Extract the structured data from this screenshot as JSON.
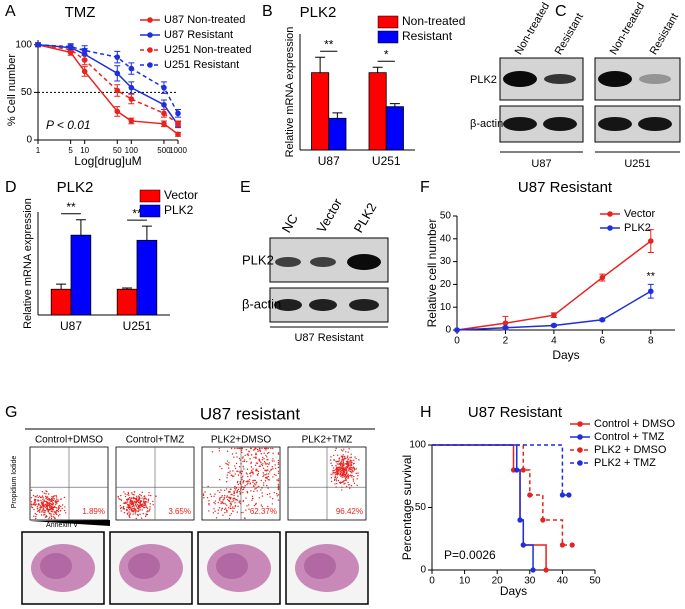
{
  "panel_labels": [
    "A",
    "B",
    "C",
    "D",
    "E",
    "F",
    "G",
    "H"
  ],
  "chart_data": [
    {
      "type": "line",
      "title": "TMZ",
      "xlabel": "Log[drug]uM",
      "ylabel": "% Cell number",
      "xscale": "log",
      "x": [
        1,
        5,
        10,
        50,
        100,
        500,
        1000
      ],
      "xlim": [
        1,
        1000
      ],
      "xticks": [
        1,
        5,
        10,
        50,
        100,
        500,
        1000
      ],
      "ylim": [
        0,
        105
      ],
      "yticks": [
        0,
        50,
        100
      ],
      "reference_line": 50,
      "annotation": "P < 0.01",
      "series": [
        {
          "name": "U87 Non-treated",
          "color": "#e8231f",
          "dash": false,
          "values": [
            100,
            92,
            72,
            30,
            20,
            17,
            6
          ],
          "errors": [
            2,
            3,
            5,
            5,
            3,
            3,
            2
          ]
        },
        {
          "name": "U87 Resistant",
          "color": "#1d2fe0",
          "dash": false,
          "values": [
            100,
            97,
            90,
            70,
            55,
            37,
            16
          ],
          "errors": [
            2,
            3,
            6,
            8,
            6,
            5,
            3
          ]
        },
        {
          "name": "U251 Non-treated",
          "color": "#e8231f",
          "dash": true,
          "values": [
            100,
            95,
            84,
            52,
            43,
            28,
            17
          ],
          "errors": [
            2,
            3,
            5,
            6,
            5,
            4,
            3
          ]
        },
        {
          "name": "U251 Resistant",
          "color": "#1d2fe0",
          "dash": true,
          "values": [
            100,
            98,
            94,
            87,
            75,
            55,
            28
          ],
          "errors": [
            2,
            3,
            5,
            6,
            6,
            6,
            4
          ]
        }
      ]
    },
    {
      "type": "bar",
      "title": "PLK2",
      "ylabel": "Relative mRNA expression",
      "categories": [
        "U87",
        "U251"
      ],
      "ylim": [
        0,
        1.5
      ],
      "significance": [
        "**",
        "*"
      ],
      "series": [
        {
          "name": "Non-treated",
          "color": "#ff0000",
          "values": [
            1.0,
            1.0
          ],
          "errors": [
            0.2,
            0.07
          ]
        },
        {
          "name": "Resistant",
          "color": "#0000ff",
          "values": [
            0.41,
            0.56
          ],
          "errors": [
            0.07,
            0.04
          ]
        }
      ]
    },
    {
      "type": "bar",
      "title": "PLK2",
      "ylabel": "Relative mRNA expression",
      "categories": [
        "U87",
        "U251"
      ],
      "ylim": [
        0,
        4
      ],
      "significance": [
        "**",
        "**"
      ],
      "series": [
        {
          "name": "Vector",
          "color": "#ff0000",
          "values": [
            1.0,
            1.0
          ],
          "errors": [
            0.2,
            0.05
          ]
        },
        {
          "name": "PLK2",
          "color": "#0000ff",
          "values": [
            3.1,
            2.9
          ],
          "errors": [
            0.6,
            0.55
          ]
        }
      ]
    },
    {
      "type": "line",
      "title": "U87 Resistant",
      "xlabel": "Days",
      "ylabel": "Relative cell number",
      "x": [
        0,
        2,
        4,
        6,
        8
      ],
      "xlim": [
        0,
        9
      ],
      "xticks": [
        0,
        2,
        4,
        6,
        8
      ],
      "ylim": [
        0,
        50
      ],
      "yticks": [
        0,
        10,
        20,
        30,
        40,
        50
      ],
      "annotation": "**",
      "series": [
        {
          "name": "Vector",
          "color": "#e8231f",
          "dash": false,
          "values": [
            0,
            3,
            6.5,
            23,
            39
          ],
          "errors": [
            0,
            3,
            1,
            1.5,
            5
          ]
        },
        {
          "name": "PLK2",
          "color": "#1d2fe0",
          "dash": false,
          "values": [
            0,
            1,
            2,
            4.5,
            17
          ],
          "errors": [
            0,
            0.5,
            0.5,
            0.5,
            3
          ]
        }
      ]
    },
    {
      "type": "step",
      "title": "U87 Resistant",
      "xlabel": "Days",
      "ylabel": "Percentage survival",
      "xlim": [
        0,
        50
      ],
      "xticks": [
        0,
        10,
        20,
        30,
        40,
        50
      ],
      "ylim": [
        0,
        100
      ],
      "yticks": [
        0,
        50,
        100
      ],
      "annotation": "P=0.0026",
      "series": [
        {
          "name": "Control + DMSO",
          "color": "#e8231f",
          "dash": false,
          "x": [
            0,
            25,
            27,
            28,
            35
          ],
          "values": [
            100,
            80,
            40,
            20,
            0
          ]
        },
        {
          "name": "Control + TMZ",
          "color": "#1d2fe0",
          "dash": false,
          "x": [
            0,
            26,
            27,
            28,
            31
          ],
          "values": [
            100,
            80,
            40,
            20,
            0
          ]
        },
        {
          "name": "PLK2 + DMSO",
          "color": "#e8231f",
          "dash": true,
          "x": [
            0,
            28,
            30,
            34,
            40,
            43
          ],
          "values": [
            100,
            80,
            60,
            40,
            20,
            20
          ]
        },
        {
          "name": "PLK2 + TMZ",
          "color": "#1d2fe0",
          "dash": true,
          "x": [
            0,
            40,
            42
          ],
          "values": [
            100,
            60,
            60
          ]
        }
      ]
    }
  ],
  "blot_c": {
    "columns": [
      "Non-treated",
      "Resistant",
      "Non-treated",
      "Resistant"
    ],
    "rows": [
      "PLK2",
      "β-actin"
    ],
    "groups": [
      "U87",
      "U251"
    ]
  },
  "blot_e": {
    "columns": [
      "NC",
      "Vector",
      "PLK2"
    ],
    "rows": [
      "PLK2",
      "β-actin"
    ],
    "group": "U87 Resistant"
  },
  "figure_g": {
    "title": "U87 resistant",
    "conditions": [
      "Control+DMSO",
      "Control+TMZ",
      "PLK2+DMSO",
      "PLK2+TMZ"
    ],
    "percentages": [
      "1.89%",
      "3.65%",
      "62.37%",
      "96.42%"
    ],
    "y_axis": "Propidium Iodide",
    "x_axis": "Annexin V"
  }
}
